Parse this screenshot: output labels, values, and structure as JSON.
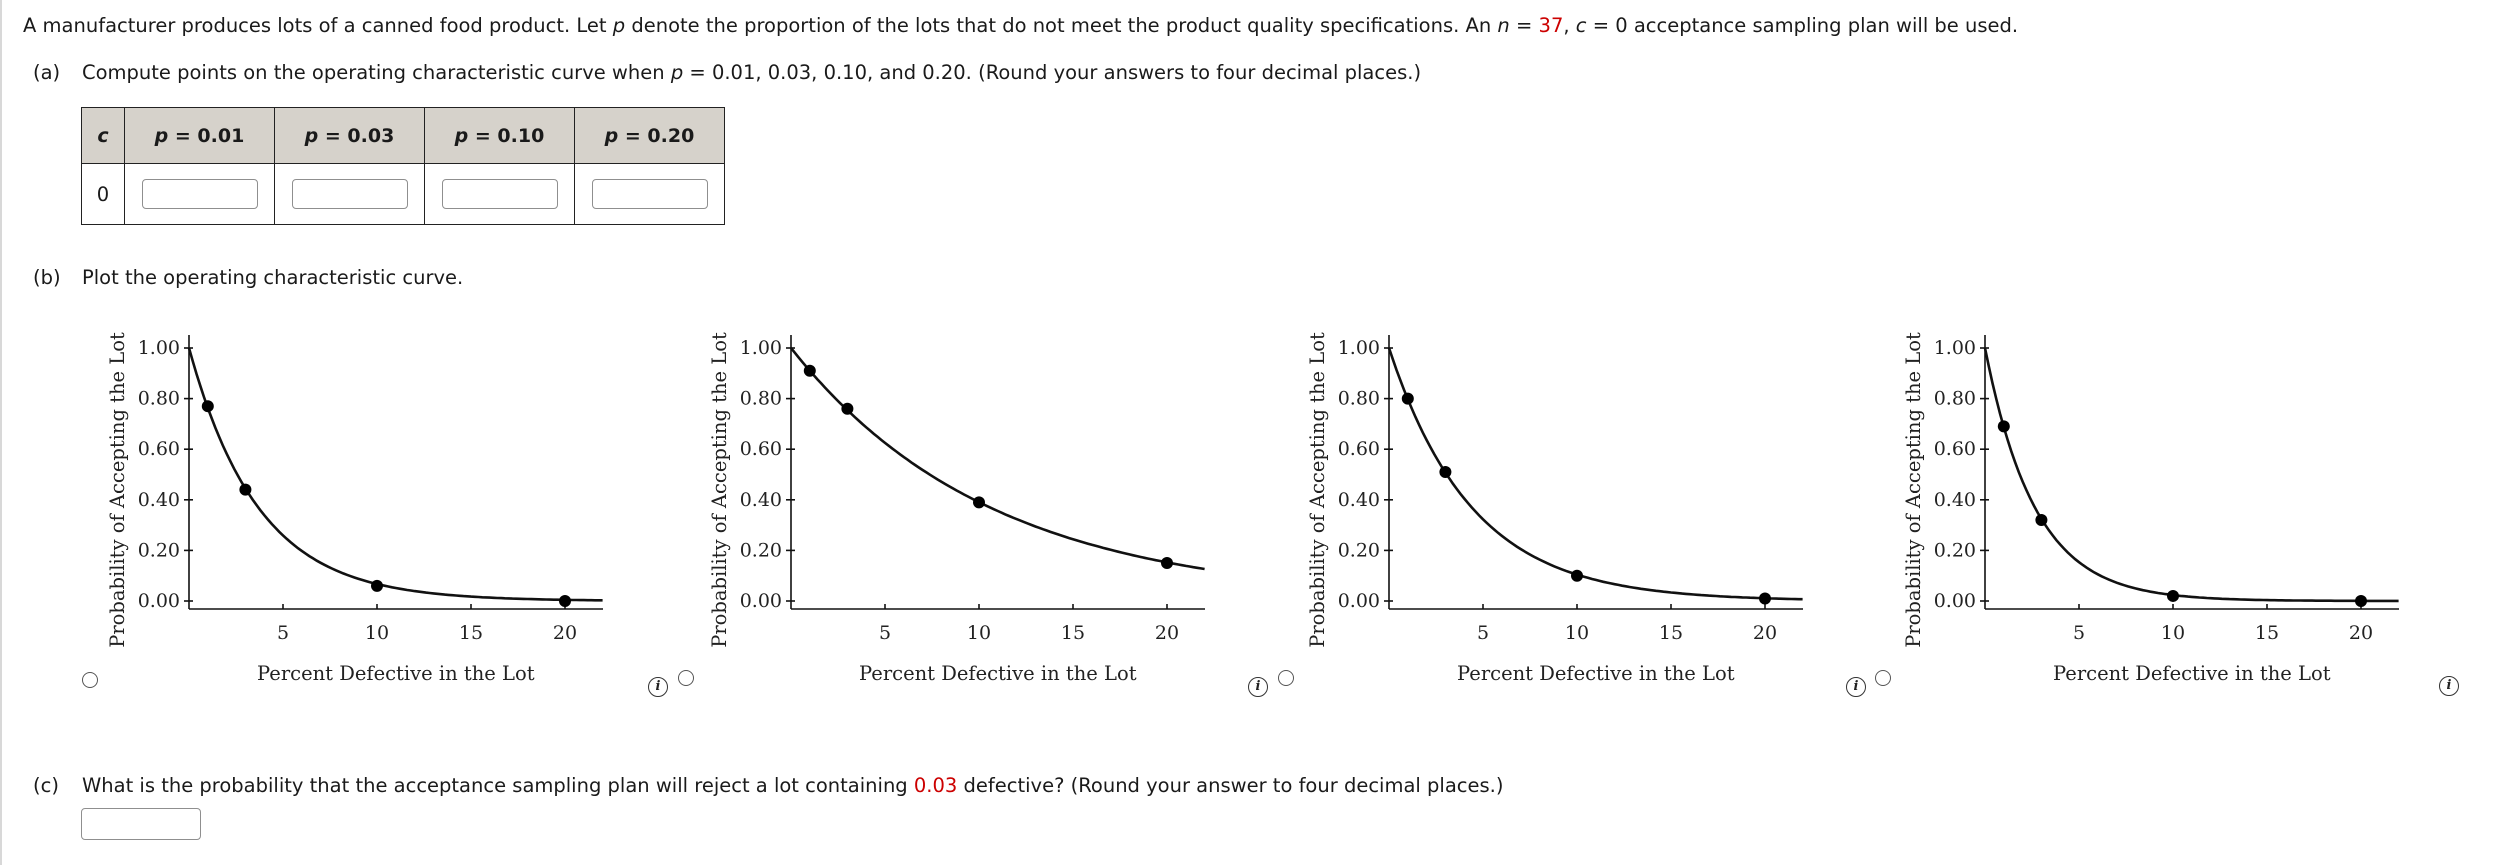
{
  "intro": {
    "text_before_p": "A manufacturer produces lots of a canned food product. Let ",
    "p_symbol": "p",
    "text_after_p": " denote the proportion of the lots that do not meet the product quality specifications. An ",
    "n_symbol": "n",
    "eq1": " = ",
    "n_value": "37",
    "comma": ", ",
    "c_symbol": "c",
    "eq2": " = 0 acceptance sampling plan will be used."
  },
  "part_a": {
    "label": "(a)",
    "text_before": "Compute points on the operating characteristic curve when ",
    "p_symbol": "p",
    "text_after": " = 0.01, 0.03, 0.10, and 0.20. (Round your answers to four decimal places.)",
    "table": {
      "headers": [
        {
          "sym": "c",
          "rest": ""
        },
        {
          "sym": "p",
          "rest": " = 0.01"
        },
        {
          "sym": "p",
          "rest": " = 0.03"
        },
        {
          "sym": "p",
          "rest": " = 0.10"
        },
        {
          "sym": "p",
          "rest": " = 0.20"
        }
      ],
      "row": {
        "c": "0",
        "values": [
          "",
          "",
          "",
          ""
        ]
      }
    }
  },
  "part_b": {
    "label": "(b)",
    "text": "Plot the operating characteristic curve."
  },
  "part_c": {
    "label": "(c)",
    "text_before": "What is the probability that the acceptance sampling plan will reject a lot containing ",
    "value": "0.03",
    "text_after": " defective? (Round your answer to four decimal places.)",
    "input_value": ""
  },
  "colors": {
    "highlight": "#cc0000",
    "table_header_bg": "#d6d2cb"
  },
  "chart_data": [
    {
      "type": "line",
      "title": "Option 1",
      "xlabel": "Percent Defective in the Lot",
      "ylabel": "Probability of Accepting the Lot",
      "x_ticks": [
        5,
        10,
        15,
        20
      ],
      "y_ticks": [
        "0.00",
        "0.20",
        "0.40",
        "0.60",
        "0.80",
        "1.00"
      ],
      "xlim": [
        0,
        22
      ],
      "ylim": [
        0,
        1.0
      ],
      "points": {
        "x": [
          1,
          3,
          10,
          20
        ],
        "y": [
          0.77,
          0.44,
          0.06,
          0.0
        ]
      },
      "curve_rate": 0.27,
      "selected": false
    },
    {
      "type": "line",
      "title": "Option 2",
      "xlabel": "Percent Defective in the Lot",
      "ylabel": "Probability of Accepting the Lot",
      "x_ticks": [
        5,
        10,
        15,
        20
      ],
      "y_ticks": [
        "0.00",
        "0.20",
        "0.40",
        "0.60",
        "0.80",
        "1.00"
      ],
      "xlim": [
        0,
        22
      ],
      "ylim": [
        0,
        1.0
      ],
      "points": {
        "x": [
          1,
          3,
          10,
          20
        ],
        "y": [
          0.91,
          0.76,
          0.39,
          0.15
        ]
      },
      "curve_rate": 0.094,
      "selected": false
    },
    {
      "type": "line",
      "title": "Option 3",
      "xlabel": "Percent Defective in the Lot",
      "ylabel": "Probability of Accepting the Lot",
      "x_ticks": [
        5,
        10,
        15,
        20
      ],
      "y_ticks": [
        "0.00",
        "0.20",
        "0.40",
        "0.60",
        "0.80",
        "1.00"
      ],
      "xlim": [
        0,
        22
      ],
      "ylim": [
        0,
        1.0
      ],
      "points": {
        "x": [
          1,
          3,
          10,
          20
        ],
        "y": [
          0.8,
          0.51,
          0.1,
          0.01
        ]
      },
      "curve_rate": 0.226,
      "selected": false
    },
    {
      "type": "line",
      "title": "Option 4",
      "xlabel": "Percent Defective in the Lot",
      "ylabel": "Probability of Accepting the Lot",
      "x_ticks": [
        5,
        10,
        15,
        20
      ],
      "y_ticks": [
        "0.00",
        "0.20",
        "0.40",
        "0.60",
        "0.80",
        "1.00"
      ],
      "xlim": [
        0,
        22
      ],
      "ylim": [
        0,
        1.0
      ],
      "points": {
        "x": [
          1,
          3,
          10,
          20
        ],
        "y": [
          0.69,
          0.32,
          0.02,
          0.0
        ]
      },
      "curve_rate": 0.375,
      "selected": false
    }
  ]
}
